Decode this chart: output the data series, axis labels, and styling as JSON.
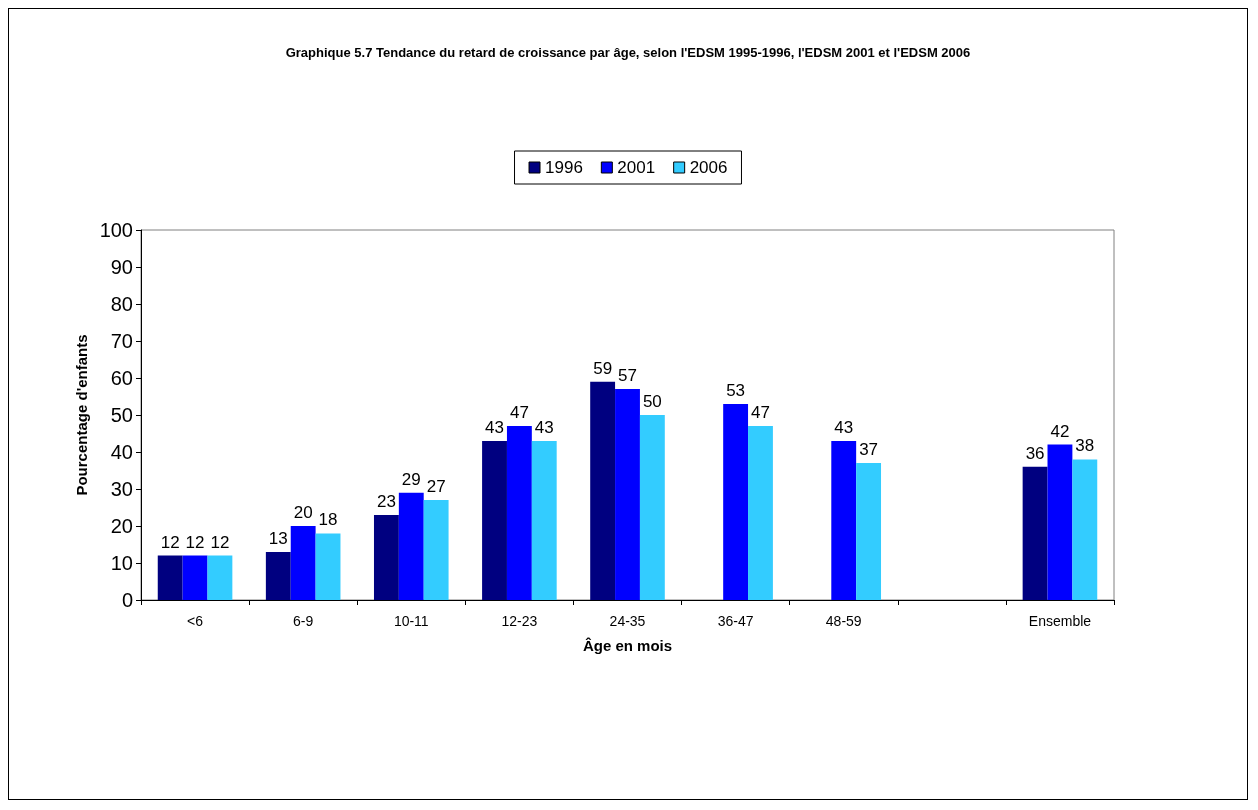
{
  "chart_data": {
    "type": "bar",
    "title": "Graphique 5.7 Tendance du retard de croissance par âge, selon l'EDSM 1995-1996, l'EDSM 2001 et l'EDSM 2006",
    "xlabel": "Âge en mois",
    "ylabel": "Pourcentage d'enfants",
    "categories": [
      "<6",
      "6-9",
      "10-11",
      "12-23",
      "24-35",
      "36-47",
      "48-59",
      null,
      "Ensemble"
    ],
    "series": [
      {
        "name": "1996",
        "color": "#000080",
        "values": [
          12,
          13,
          23,
          43,
          59,
          null,
          null,
          null,
          36
        ]
      },
      {
        "name": "2001",
        "color": "#0000ff",
        "values": [
          12,
          20,
          29,
          47,
          57,
          53,
          43,
          null,
          42
        ]
      },
      {
        "name": "2006",
        "color": "#33ccff",
        "values": [
          12,
          18,
          27,
          43,
          50,
          47,
          37,
          null,
          38
        ]
      }
    ],
    "ylim": [
      0,
      100
    ],
    "yticks": [
      0,
      10,
      20,
      30,
      40,
      50,
      60,
      70,
      80,
      90,
      100
    ],
    "legend": "top",
    "data_labels": true
  }
}
